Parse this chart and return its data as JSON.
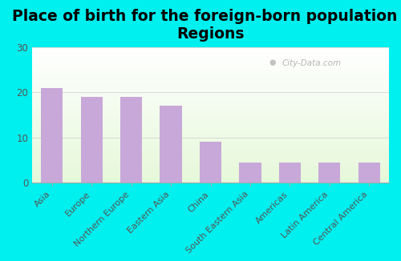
{
  "title": "Place of birth for the foreign-born population -\nRegions",
  "categories": [
    "Asia",
    "Europe",
    "Northern Europe",
    "Eastern Asia",
    "China",
    "South Eastern Asia",
    "Americas",
    "Latin America",
    "Central America"
  ],
  "values": [
    21.0,
    19.0,
    19.0,
    17.0,
    9.0,
    4.5,
    4.5,
    4.5,
    4.5
  ],
  "bar_color": "#c8a8d8",
  "background_color": "#00EFEF",
  "plot_bg_top": "#f8fff0",
  "plot_bg_bottom": "#ffffff",
  "ylim": [
    0,
    30
  ],
  "yticks": [
    0,
    10,
    20,
    30
  ],
  "title_fontsize": 13.5,
  "tick_fontsize": 8.0,
  "watermark": "City-Data.com",
  "label_color": "#555555"
}
